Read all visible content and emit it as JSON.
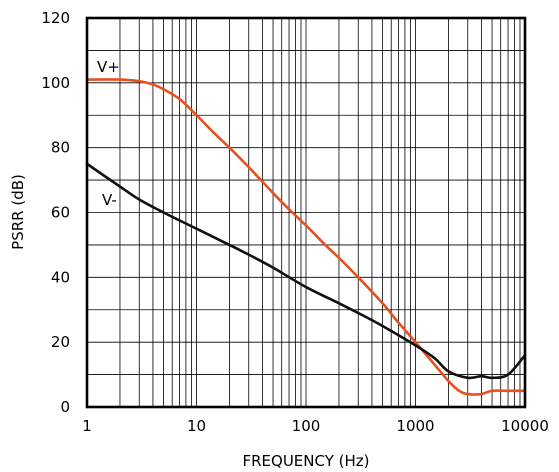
{
  "chart_data": {
    "type": "line",
    "title": "",
    "xlabel": "FREQUENCY (Hz)",
    "ylabel": "PSRR (dB)",
    "x_scale": "log",
    "xlim": [
      1,
      10000
    ],
    "ylim": [
      0,
      120
    ],
    "x_ticks": [
      "1",
      "10",
      "100",
      "1000",
      "10000"
    ],
    "y_ticks": [
      "0",
      "20",
      "40",
      "60",
      "80",
      "100",
      "120"
    ],
    "grid": true,
    "series": [
      {
        "name": "V+",
        "color": "#e8501e",
        "x": [
          1,
          2,
          3,
          4,
          5,
          7,
          10,
          15,
          20,
          30,
          50,
          70,
          100,
          150,
          200,
          300,
          500,
          700,
          1000,
          1500,
          2000,
          2500,
          3000,
          4000,
          5000,
          7000,
          10000
        ],
        "y": [
          101,
          101,
          100.5,
          99.5,
          98,
          95,
          90,
          84,
          80,
          74,
          66,
          61,
          56,
          50,
          46,
          40,
          32,
          26,
          20,
          13,
          8,
          5,
          4,
          4,
          5,
          5,
          5
        ]
      },
      {
        "name": "V-",
        "color": "#111111",
        "x": [
          1,
          2,
          3,
          5,
          10,
          20,
          30,
          50,
          100,
          200,
          300,
          500,
          1000,
          1500,
          2000,
          3000,
          4000,
          5000,
          7000,
          10000
        ],
        "y": [
          75,
          68,
          64,
          60,
          55,
          50,
          47,
          43,
          37,
          32,
          29,
          25,
          19,
          15,
          11,
          9,
          9.5,
          9,
          10,
          16
        ]
      }
    ]
  }
}
